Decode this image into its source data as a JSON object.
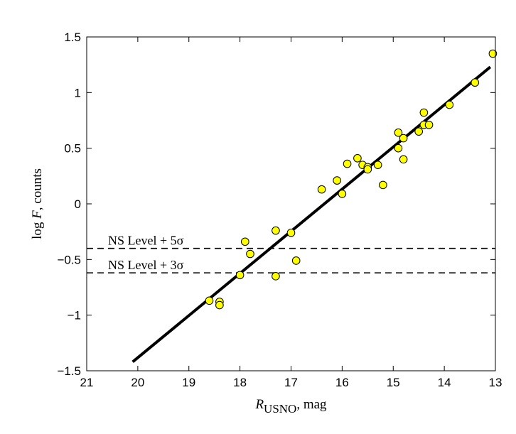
{
  "chart_data": {
    "type": "scatter",
    "title": "",
    "xlabel": {
      "symbol": "R",
      "subscript": "USNO",
      "suffix": ", mag"
    },
    "ylabel": {
      "prefix": "log ",
      "symbol": "F",
      "suffix": ", counts"
    },
    "xlim": [
      21,
      13
    ],
    "ylim": [
      -1.5,
      1.5
    ],
    "x_reversed": true,
    "x_ticks": [
      21,
      20,
      19,
      18,
      17,
      16,
      15,
      14,
      13
    ],
    "y_ticks": [
      -1.5,
      -1,
      -0.5,
      0,
      0.5,
      1,
      1.5
    ],
    "x_tick_labels": [
      "21",
      "20",
      "19",
      "18",
      "17",
      "16",
      "15",
      "14",
      "13"
    ],
    "y_tick_labels": [
      "−1.5",
      "−1",
      "−0.5",
      "0",
      "0.5",
      "1",
      "1.5"
    ],
    "grid": false,
    "marker_color": "#ffff00",
    "marker_edge_color": "#000000",
    "fit_line": {
      "x": [
        20.1,
        13.1
      ],
      "y": [
        -1.42,
        1.23
      ]
    },
    "reference_lines": [
      {
        "y": -0.4,
        "label": "NS Level + 5σ"
      },
      {
        "y": -0.62,
        "label": "NS Level + 3σ"
      }
    ],
    "points": [
      {
        "x": 13.05,
        "y": 1.35
      },
      {
        "x": 13.4,
        "y": 1.09
      },
      {
        "x": 13.9,
        "y": 0.89
      },
      {
        "x": 14.4,
        "y": 0.82
      },
      {
        "x": 14.4,
        "y": 0.71
      },
      {
        "x": 14.3,
        "y": 0.71
      },
      {
        "x": 14.5,
        "y": 0.65
      },
      {
        "x": 14.9,
        "y": 0.64
      },
      {
        "x": 14.8,
        "y": 0.59
      },
      {
        "x": 14.9,
        "y": 0.5
      },
      {
        "x": 14.8,
        "y": 0.4
      },
      {
        "x": 15.7,
        "y": 0.41
      },
      {
        "x": 15.9,
        "y": 0.36
      },
      {
        "x": 15.6,
        "y": 0.35
      },
      {
        "x": 15.5,
        "y": 0.33
      },
      {
        "x": 15.5,
        "y": 0.31
      },
      {
        "x": 15.3,
        "y": 0.35
      },
      {
        "x": 16.1,
        "y": 0.21
      },
      {
        "x": 15.2,
        "y": 0.17
      },
      {
        "x": 16.4,
        "y": 0.13
      },
      {
        "x": 16.0,
        "y": 0.09
      },
      {
        "x": 17.3,
        "y": -0.24
      },
      {
        "x": 17.0,
        "y": -0.26
      },
      {
        "x": 17.9,
        "y": -0.34
      },
      {
        "x": 17.8,
        "y": -0.45
      },
      {
        "x": 16.9,
        "y": -0.51
      },
      {
        "x": 18.0,
        "y": -0.64
      },
      {
        "x": 17.3,
        "y": -0.65
      },
      {
        "x": 18.6,
        "y": -0.87
      },
      {
        "x": 18.4,
        "y": -0.88
      },
      {
        "x": 18.4,
        "y": -0.91
      }
    ]
  }
}
